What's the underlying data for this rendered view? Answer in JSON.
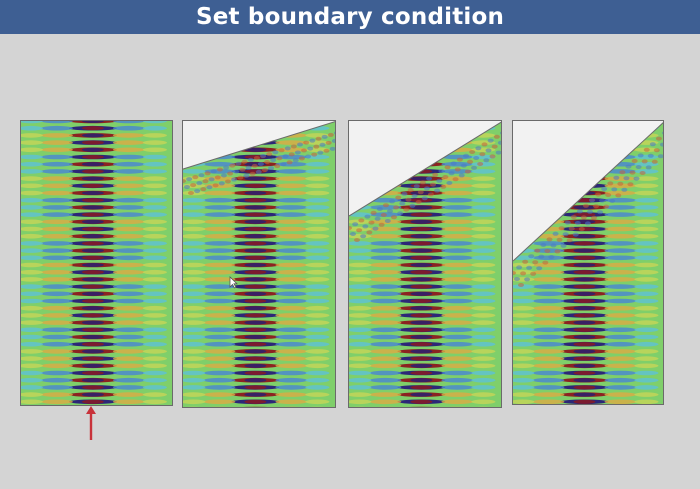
{
  "title": "Set boundary condition",
  "colors": {
    "title_bar": "#3e5f93",
    "slide_background": "#d4d4d4",
    "field_background": "#7fcf6a",
    "arrow": "#c8323a"
  },
  "panels": [
    {
      "name": "panel-flat-boundary",
      "boundary": "flat"
    },
    {
      "name": "panel-shallow-slope",
      "boundary": "shallow-slope"
    },
    {
      "name": "panel-medium-slope",
      "boundary": "medium-slope"
    },
    {
      "name": "panel-steep-slope",
      "boundary": "steep-slope"
    }
  ],
  "icons": [
    "source-arrow-icon",
    "mouse-cursor-icon"
  ]
}
